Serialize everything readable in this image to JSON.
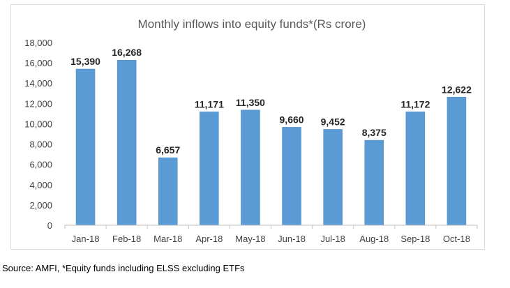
{
  "chart_data": {
    "type": "bar",
    "title": "Monthly inflows into equity funds*(Rs crore)",
    "xlabel": "",
    "ylabel": "",
    "categories": [
      "Jan-18",
      "Feb-18",
      "Mar-18",
      "Apr-18",
      "May-18",
      "Jun-18",
      "Jul-18",
      "Aug-18",
      "Sep-18",
      "Oct-18"
    ],
    "values": [
      15390,
      16268,
      6657,
      11171,
      11350,
      9660,
      9452,
      8375,
      11172,
      12622
    ],
    "value_labels": [
      "15,390",
      "16,268",
      "6,657",
      "11,171",
      "11,350",
      "9,660",
      "9,452",
      "8,375",
      "11,172",
      "12,622"
    ],
    "ylim": [
      0,
      18000
    ],
    "yticks": [
      0,
      2000,
      4000,
      6000,
      8000,
      10000,
      12000,
      14000,
      16000,
      18000
    ],
    "ytick_labels": [
      "0",
      "2,000",
      "4,000",
      "6,000",
      "8,000",
      "10,000",
      "12,000",
      "14,000",
      "16,000",
      "18,000"
    ],
    "grid": false,
    "legend": "none",
    "colors": {
      "bar": "#5b9bd5",
      "bar_edge": "#4a89c4",
      "axis": "#bfbfbf",
      "text": "#404040",
      "label": "#262626",
      "frame": "#d9d9d9"
    }
  },
  "source_note": "Source: AMFI, *Equity funds including ELSS excluding ETFs"
}
